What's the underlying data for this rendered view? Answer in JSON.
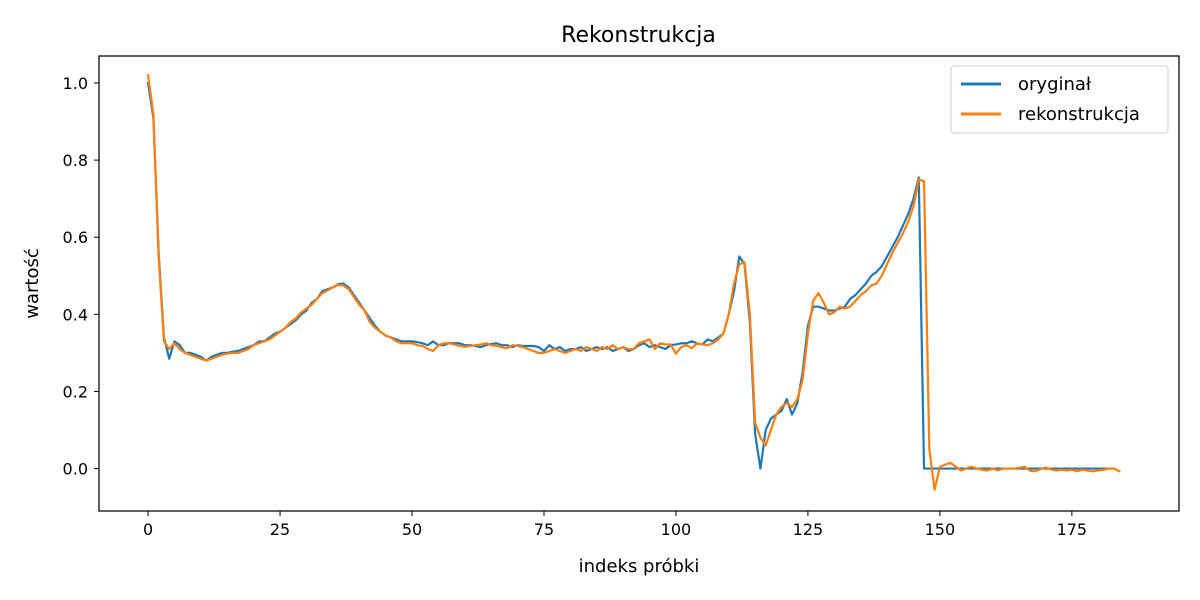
{
  "chart_data": {
    "type": "line",
    "title": "Rekonstrukcja",
    "xlabel": "indeks próbki",
    "ylabel": "wartość",
    "xlim": [
      -9.3,
      195.3
    ],
    "ylim": [
      -0.11,
      1.07
    ],
    "xticks": [
      0,
      25,
      50,
      75,
      100,
      125,
      150,
      175
    ],
    "yticks": [
      "0.0",
      "0.2",
      "0.4",
      "0.6",
      "0.8",
      "1.0"
    ],
    "grid": false,
    "legend_position": "top-right",
    "series": [
      {
        "name": "oryginał",
        "color": "#1f77b4",
        "y": [
          1.0,
          0.91,
          0.56,
          0.34,
          0.285,
          0.33,
          0.32,
          0.3,
          0.3,
          0.295,
          0.29,
          0.28,
          0.29,
          0.295,
          0.3,
          0.3,
          0.303,
          0.305,
          0.31,
          0.315,
          0.32,
          0.33,
          0.33,
          0.34,
          0.35,
          0.355,
          0.365,
          0.375,
          0.385,
          0.4,
          0.41,
          0.43,
          0.44,
          0.46,
          0.465,
          0.47,
          0.478,
          0.48,
          0.47,
          0.45,
          0.43,
          0.41,
          0.39,
          0.37,
          0.355,
          0.345,
          0.34,
          0.335,
          0.33,
          0.33,
          0.33,
          0.328,
          0.325,
          0.32,
          0.33,
          0.32,
          0.32,
          0.325,
          0.325,
          0.325,
          0.32,
          0.32,
          0.318,
          0.315,
          0.32,
          0.323,
          0.325,
          0.32,
          0.32,
          0.315,
          0.32,
          0.318,
          0.318,
          0.318,
          0.315,
          0.305,
          0.32,
          0.31,
          0.315,
          0.305,
          0.31,
          0.31,
          0.315,
          0.305,
          0.31,
          0.315,
          0.31,
          0.315,
          0.305,
          0.31,
          0.315,
          0.305,
          0.31,
          0.32,
          0.325,
          0.315,
          0.32,
          0.315,
          0.31,
          0.32,
          0.322,
          0.325,
          0.325,
          0.33,
          0.325,
          0.322,
          0.335,
          0.33,
          0.34,
          0.35,
          0.4,
          0.46,
          0.55,
          0.53,
          0.38,
          0.09,
          0.0,
          0.1,
          0.13,
          0.14,
          0.15,
          0.18,
          0.14,
          0.17,
          0.25,
          0.37,
          0.42,
          0.42,
          0.415,
          0.41,
          0.41,
          0.415,
          0.42,
          0.44,
          0.45,
          0.465,
          0.48,
          0.5,
          0.51,
          0.525,
          0.55,
          0.575,
          0.6,
          0.63,
          0.66,
          0.7,
          0.755,
          0.0,
          0.0,
          0.0,
          0.0,
          0.0,
          0.0,
          0.0,
          0.0,
          0.0,
          0.0,
          0.0,
          0.0,
          0.0,
          0.0,
          0.0,
          0.0,
          0.0,
          0.0,
          0.0,
          0.0,
          0.0,
          0.0,
          0.0,
          0.0,
          0.0,
          0.0,
          0.0,
          0.0,
          0.0,
          0.0,
          0.0,
          0.0,
          0.0,
          0.0,
          0.0,
          0.0,
          0.0
        ]
      },
      {
        "name": "rekonstrukcja",
        "color": "#ff7f0e",
        "y": [
          1.02,
          0.92,
          0.55,
          0.33,
          0.31,
          0.325,
          0.31,
          0.3,
          0.295,
          0.29,
          0.285,
          0.28,
          0.285,
          0.29,
          0.295,
          0.298,
          0.3,
          0.3,
          0.305,
          0.31,
          0.32,
          0.325,
          0.33,
          0.335,
          0.345,
          0.355,
          0.365,
          0.38,
          0.39,
          0.405,
          0.415,
          0.425,
          0.44,
          0.455,
          0.462,
          0.47,
          0.476,
          0.475,
          0.465,
          0.445,
          0.425,
          0.41,
          0.38,
          0.365,
          0.355,
          0.345,
          0.34,
          0.33,
          0.325,
          0.325,
          0.325,
          0.32,
          0.318,
          0.31,
          0.305,
          0.32,
          0.325,
          0.325,
          0.322,
          0.318,
          0.316,
          0.318,
          0.32,
          0.322,
          0.325,
          0.32,
          0.318,
          0.315,
          0.312,
          0.32,
          0.318,
          0.315,
          0.31,
          0.305,
          0.3,
          0.3,
          0.305,
          0.31,
          0.305,
          0.3,
          0.305,
          0.31,
          0.305,
          0.315,
          0.31,
          0.305,
          0.315,
          0.31,
          0.32,
          0.31,
          0.315,
          0.31,
          0.31,
          0.325,
          0.33,
          0.335,
          0.31,
          0.325,
          0.322,
          0.322,
          0.298,
          0.315,
          0.32,
          0.312,
          0.325,
          0.322,
          0.32,
          0.325,
          0.335,
          0.35,
          0.4,
          0.48,
          0.53,
          0.535,
          0.4,
          0.12,
          0.08,
          0.06,
          0.1,
          0.14,
          0.16,
          0.17,
          0.16,
          0.18,
          0.23,
          0.35,
          0.435,
          0.455,
          0.43,
          0.4,
          0.405,
          0.42,
          0.415,
          0.42,
          0.435,
          0.45,
          0.46,
          0.475,
          0.48,
          0.5,
          0.53,
          0.56,
          0.585,
          0.61,
          0.64,
          0.68,
          0.75,
          0.745,
          0.05,
          -0.055,
          0.005,
          0.01,
          0.015,
          0.005,
          -0.005,
          0.0,
          0.005,
          0.0,
          -0.003,
          -0.005,
          0.0,
          -0.005,
          0.0,
          0.0,
          0.0,
          0.002,
          0.005,
          -0.005,
          -0.007,
          -0.002,
          0.003,
          -0.002,
          -0.005,
          -0.003,
          -0.005,
          -0.003,
          -0.007,
          -0.003,
          -0.005,
          -0.007,
          -0.005,
          -0.003,
          0.0,
          0.0,
          -0.007
        ]
      }
    ]
  }
}
